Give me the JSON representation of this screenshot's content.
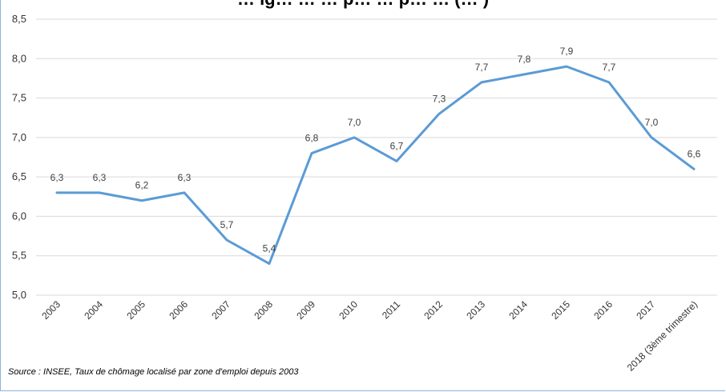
{
  "chart_data": {
    "type": "line",
    "title": "… ig… … … p… … p… … (… )",
    "categories": [
      "2003",
      "2004",
      "2005",
      "2006",
      "2007",
      "2008",
      "2009",
      "2010",
      "2011",
      "2012",
      "2013",
      "2014",
      "2015",
      "2016",
      "2017",
      "2018 (3ème trimestre)"
    ],
    "series": [
      {
        "values": [
          6.3,
          6.3,
          6.2,
          6.3,
          5.7,
          5.4,
          6.8,
          7.0,
          6.7,
          7.3,
          7.7,
          7.8,
          7.9,
          7.7,
          7.0,
          6.6
        ],
        "value_labels": [
          "6,3",
          "6,3",
          "6,2",
          "6,3",
          "5,7",
          "5,4",
          "6,8",
          "7,0",
          "6,7",
          "7,3",
          "7,7",
          "7,8",
          "7,9",
          "7,7",
          "7,0",
          "6,6"
        ],
        "color": "#5b9bd5"
      }
    ],
    "ylim": [
      5.0,
      8.5
    ],
    "yticks": [
      5.0,
      5.5,
      6.0,
      6.5,
      7.0,
      7.5,
      8.0,
      8.5
    ],
    "ytick_labels": [
      "5,0",
      "5,5",
      "6,0",
      "6,5",
      "7,0",
      "7,5",
      "8,0",
      "8,5"
    ],
    "grid": true,
    "source": "Source : INSEE, Taux de chômage localisé par zone d'emploi depuis 2003"
  },
  "colors": {
    "line": "#5b9bd5",
    "grid": "#d9d9d9",
    "frame": "#8fb3d9"
  }
}
